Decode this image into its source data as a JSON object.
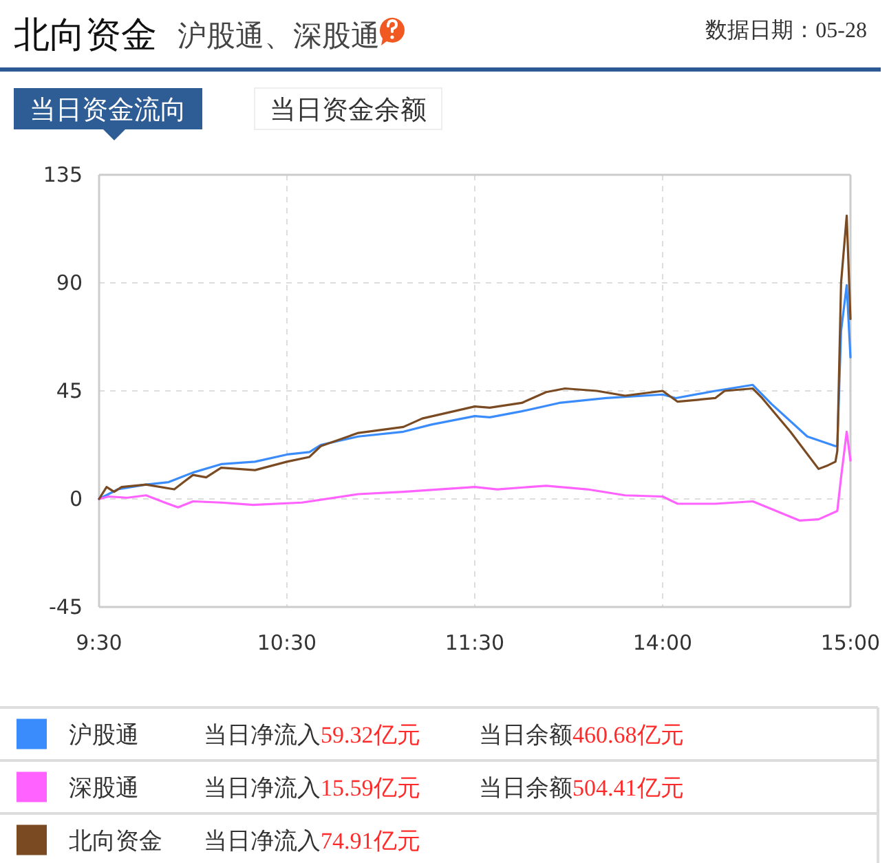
{
  "chart_data": [
    {
      "type": "line",
      "title": "北向资金",
      "subtitle": "沪股通、深股通",
      "annotations": [
        "数据日期：05-28",
        "当日资金流向",
        "当日资金余额",
        "当日净流入",
        "59.32亿元",
        "当日余额",
        "460.68亿元",
        "当日净流入",
        "15.59亿元",
        "当日余额",
        "504.41亿元",
        "当日净流入",
        "74.91亿元"
      ],
      "xlim": [
        9.5,
        11.5
      ],
      "xticks": [
        {
          "value": 9.5,
          "label": "9:30"
        },
        {
          "value": 10.5,
          "label": "10:30"
        },
        {
          "value": 11.5,
          "label": "11:30"
        }
      ],
      "ylim": [
        -45,
        135
      ],
      "yticks": [
        -45,
        0,
        45,
        90,
        135
      ],
      "grid": true,
      "legend": "bottom",
      "line_style": "solid",
      "series": [
        {
          "name": "沪股通",
          "color": "#3a8cfc",
          "x": [
            9.5,
            9.6,
            9.75,
            9.87,
            10,
            10.15,
            10.33,
            10.5,
            10.62,
            10.68,
            10.88,
            11.12,
            11.27,
            11.5
          ],
          "values": [
            0,
            4,
            6,
            7,
            11,
            14.5,
            15.5,
            18.5,
            19.5,
            22.5,
            26,
            28,
            31,
            34.5
          ]
        },
        {
          "name": "深股通",
          "color": "#ff62ff",
          "x": [
            9.5,
            9.55,
            9.65,
            9.75,
            9.85,
            9.92,
            10,
            10.15,
            10.32,
            10.58,
            10.88,
            11.12,
            11.5
          ],
          "values": [
            0,
            1,
            0.5,
            1.5,
            -1.5,
            -3.5,
            -1,
            -1.5,
            -2.5,
            -1.5,
            2,
            3,
            5
          ]
        },
        {
          "name": "北向资金",
          "color": "#7a4b22",
          "x": [
            9.5,
            9.54,
            9.58,
            9.62,
            9.75,
            9.9,
            9.95,
            10,
            10.07,
            10.15,
            10.33,
            10.5,
            10.62,
            10.68,
            10.88,
            11.12,
            11.22,
            11.5
          ],
          "values": [
            0,
            5,
            3,
            5,
            6,
            4,
            7,
            10,
            9,
            13,
            12,
            15.5,
            17.5,
            22,
            27.5,
            30,
            33.5,
            38.5
          ]
        }
      ]
    },
    {
      "type": "line",
      "xlim": [
        13,
        15
      ],
      "xticks": [
        {
          "value": 14,
          "label": "14:00"
        },
        {
          "value": 15,
          "label": "15:00"
        }
      ],
      "ylim": [
        -45,
        135
      ],
      "yticks": [
        -45,
        0,
        45,
        90,
        135
      ],
      "tick_labels": "x",
      "grid": true,
      "line_style": "solid",
      "series": [
        {
          "color": "#3a8cfc",
          "x": [
            13,
            13.08,
            13.25,
            13.45,
            13.7,
            14,
            14.07,
            14.28,
            14.48,
            14.58,
            14.77,
            14.92,
            14.93,
            14.95,
            14.98,
            15
          ],
          "values": [
            34.5,
            34,
            36.5,
            40,
            42,
            43.5,
            42,
            45,
            47.5,
            39.5,
            26,
            22,
            22,
            70,
            89,
            59
          ]
        },
        {
          "color": "#ff62ff",
          "x": [
            13,
            13.12,
            13.38,
            13.6,
            13.8,
            14,
            14.08,
            14.28,
            14.48,
            14.73,
            14.83,
            14.93,
            14.95,
            14.98,
            15
          ],
          "values": [
            5,
            4,
            5.5,
            4,
            1.5,
            1,
            -2,
            -2,
            -1,
            -9,
            -8.5,
            -5,
            9,
            28,
            16
          ]
        },
        {
          "color": "#7a4b22",
          "x": [
            13,
            13.08,
            13.25,
            13.38,
            13.48,
            13.65,
            13.8,
            14,
            14.08,
            14.28,
            14.33,
            14.48,
            14.53,
            14.68,
            14.83,
            14.88,
            14.92,
            14.93,
            14.95,
            14.98,
            15
          ],
          "values": [
            38.5,
            38,
            40,
            44.5,
            46,
            45,
            43,
            45,
            40.5,
            42,
            45,
            46,
            42,
            28,
            12.5,
            14,
            15.5,
            20,
            90,
            118,
            75
          ]
        }
      ]
    }
  ]
}
